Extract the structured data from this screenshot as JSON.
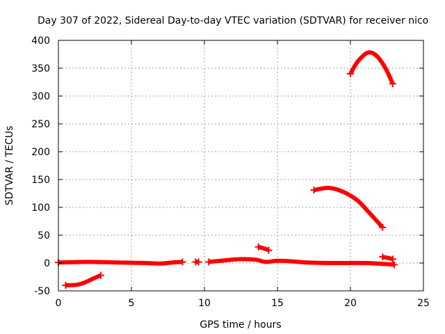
{
  "chart_data": {
    "type": "scatter",
    "title": "Day 307 of 2022, Sidereal Day-to-day VTEC variation (SDTVAR) for receiver nico",
    "xlabel": "GPS time / hours",
    "ylabel": "SDTVAR / TECUs",
    "xlim": [
      0,
      25
    ],
    "ylim": [
      -50,
      400
    ],
    "xticks": [
      0,
      5,
      10,
      15,
      20,
      25
    ],
    "yticks": [
      -50,
      0,
      50,
      100,
      150,
      200,
      250,
      300,
      350,
      400
    ],
    "grid": true,
    "legend": "none",
    "color": "#ff0000",
    "series": [
      {
        "points": [
          [
            0.0,
            1
          ],
          [
            2.0,
            2
          ],
          [
            4.0,
            1
          ],
          [
            6.0,
            0
          ],
          [
            7.0,
            -1
          ],
          [
            7.8,
            1
          ],
          [
            8.5,
            2
          ]
        ]
      },
      {
        "points": [
          [
            9.4,
            2
          ],
          [
            9.6,
            2
          ]
        ]
      },
      {
        "points": [
          [
            10.3,
            2
          ],
          [
            11.5,
            5
          ],
          [
            12.5,
            7
          ],
          [
            13.5,
            6
          ],
          [
            14.2,
            2
          ],
          [
            15.0,
            4
          ],
          [
            16.0,
            3
          ],
          [
            17.0,
            1
          ],
          [
            19.0,
            0
          ],
          [
            21.0,
            0
          ],
          [
            22.5,
            -2
          ],
          [
            23.0,
            -3
          ]
        ]
      },
      {
        "points": [
          [
            0.5,
            -40
          ],
          [
            1.3,
            -39
          ],
          [
            1.8,
            -35
          ],
          [
            2.3,
            -29
          ],
          [
            2.9,
            -22
          ]
        ]
      },
      {
        "points": [
          [
            13.7,
            29
          ],
          [
            14.1,
            26
          ],
          [
            14.4,
            23
          ]
        ]
      },
      {
        "points": [
          [
            17.5,
            131
          ],
          [
            18.5,
            135
          ],
          [
            19.5,
            128
          ],
          [
            20.5,
            112
          ],
          [
            21.3,
            90
          ],
          [
            22.2,
            64
          ]
        ]
      },
      {
        "points": [
          [
            20.0,
            340
          ],
          [
            20.5,
            362
          ],
          [
            21.2,
            378
          ],
          [
            21.8,
            372
          ],
          [
            22.4,
            350
          ],
          [
            22.9,
            322
          ]
        ]
      },
      {
        "points": [
          [
            22.2,
            11
          ],
          [
            22.6,
            9
          ],
          [
            22.9,
            7
          ]
        ]
      }
    ]
  }
}
